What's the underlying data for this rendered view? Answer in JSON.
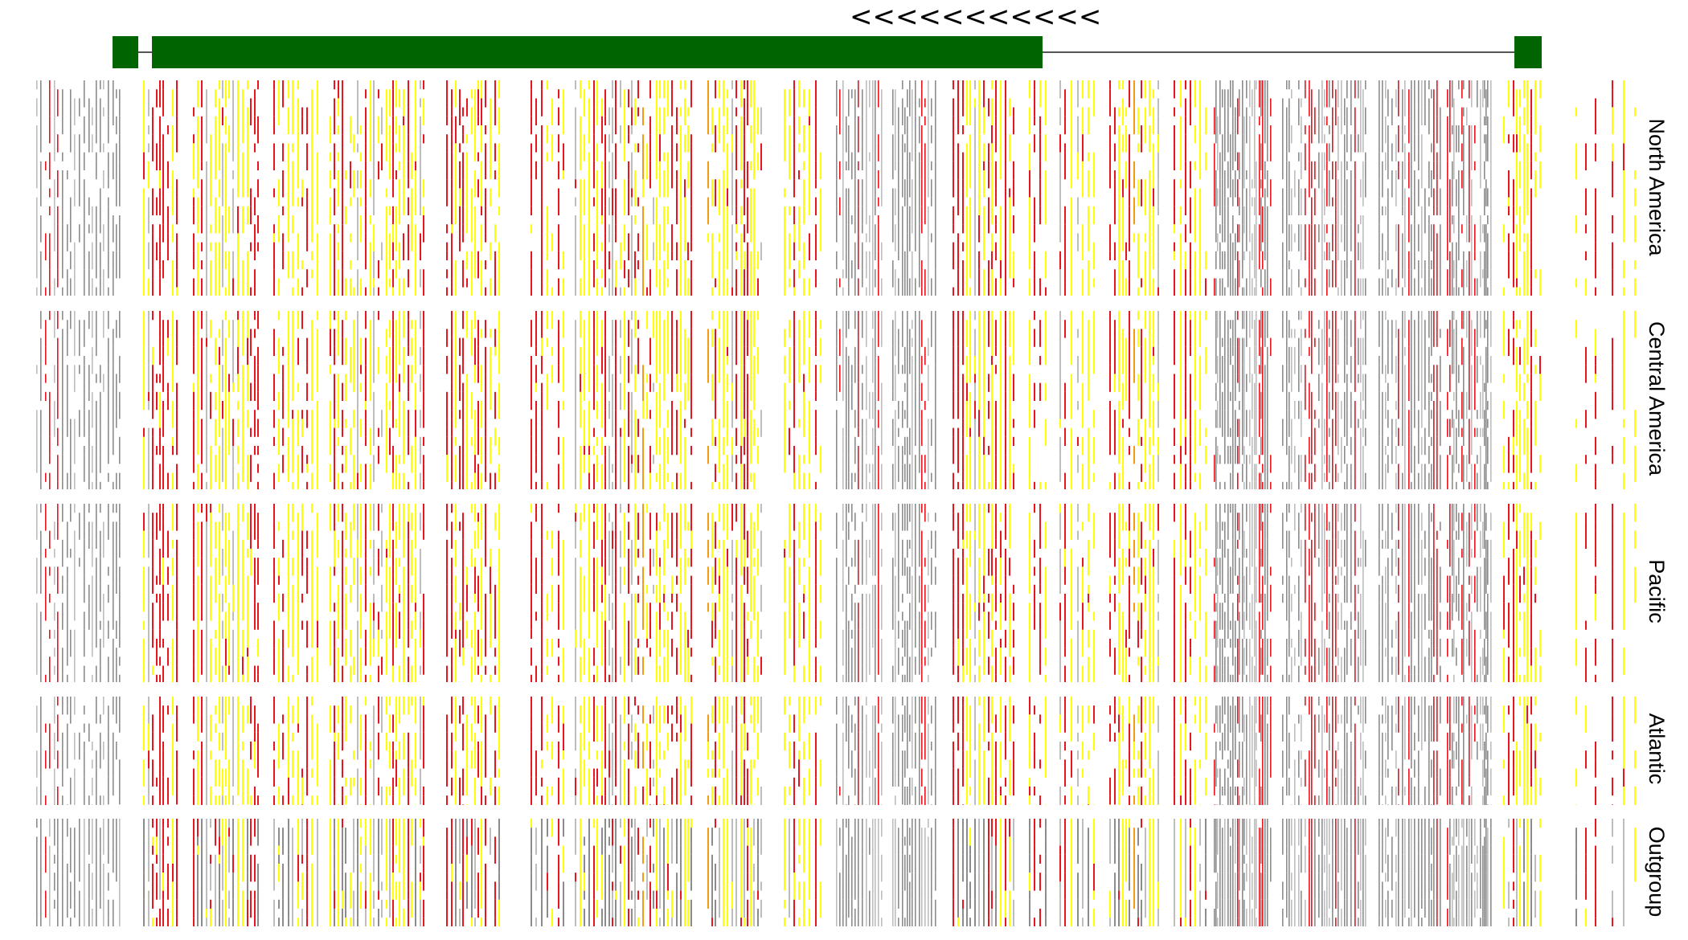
{
  "gene_model": {
    "direction_marker": "<<<<<<<<<<<",
    "exon_color": "#006400",
    "intron_color": "#555555"
  },
  "colors": {
    "yellow": "#ffff00",
    "red": "#e8141e",
    "gray": "#8c8c8c",
    "lightgray": "#bdbdbd",
    "orange": "#f39c12"
  },
  "groups": [
    {
      "label": "North America",
      "rows": 22
    },
    {
      "label": "Central America",
      "rows": 18
    },
    {
      "label": "Pacific",
      "rows": 18
    },
    {
      "label": "Atlantic",
      "rows": 11
    },
    {
      "label": "Outgroup",
      "rows": 11
    }
  ]
}
